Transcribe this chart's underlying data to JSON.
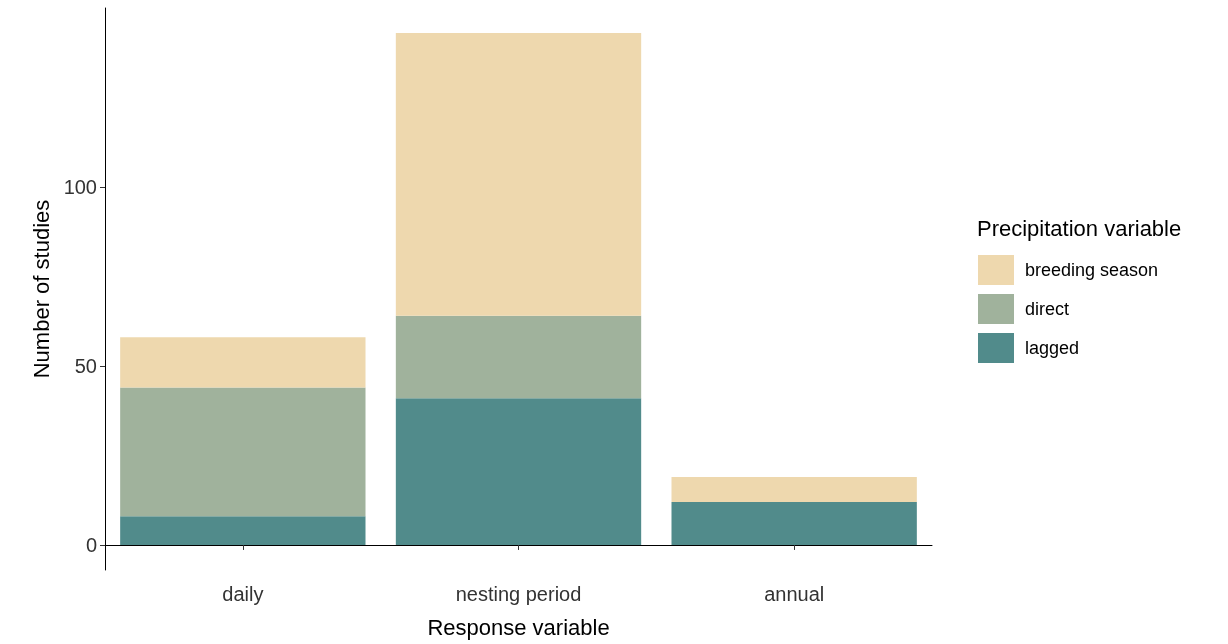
{
  "chart_data": {
    "type": "bar",
    "stacked": true,
    "xlabel": "Response variable",
    "ylabel": "Number of studies",
    "legend_title": "Precipitation variable",
    "categories": [
      "daily",
      "nesting period",
      "annual"
    ],
    "series": [
      {
        "name": "lagged",
        "color": "#518b8b",
        "values": [
          8,
          41,
          12
        ]
      },
      {
        "name": "direct",
        "color": "#a0b29c",
        "values": [
          36,
          23,
          0
        ]
      },
      {
        "name": "breeding season",
        "color": "#eed8ae",
        "values": [
          14,
          79,
          7
        ]
      }
    ],
    "ylim": [
      -7,
      150
    ],
    "yticks": [
      0,
      50,
      100
    ],
    "grid": false,
    "legend": "right"
  }
}
